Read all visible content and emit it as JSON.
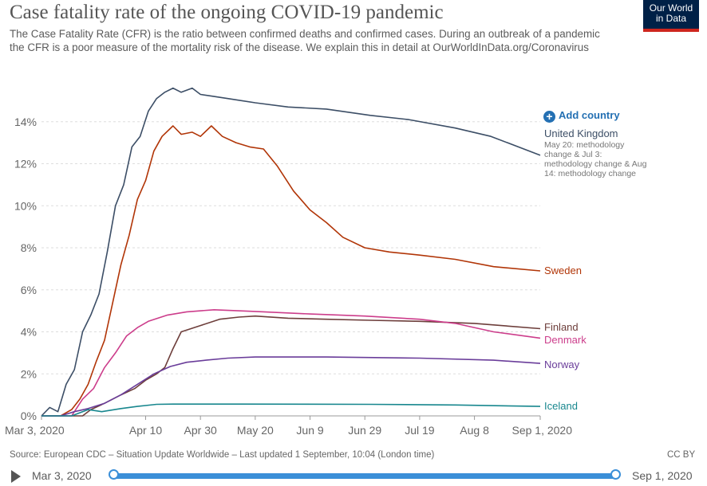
{
  "header": {
    "title": "Case fatality rate of the ongoing COVID-19 pandemic",
    "subtitle": "The Case Fatality Rate (CFR) is the ratio between confirmed deaths and confirmed cases. During an outbreak of a pandemic the CFR is a poor measure of the mortality risk of the disease. We explain this in detail at OurWorldInData.org/Coronavirus",
    "logo_line1": "Our World",
    "logo_line2": "in Data"
  },
  "controls": {
    "add_country": "Add country",
    "add_icon": "plus-circle-icon"
  },
  "footer": {
    "source": "Source: European CDC – Situation Update Worldwide – Last updated 1 September, 10:04 (London time)",
    "license": "CC BY"
  },
  "timeline": {
    "start": "Mar 3, 2020",
    "end": "Sep 1, 2020",
    "color": "#3b8fd8"
  },
  "chart_data": {
    "type": "line",
    "x_range": [
      "2020-03-03",
      "2020-09-01"
    ],
    "x_ticks": [
      {
        "date": "2020-03-03",
        "label": "Mar 3, 2020"
      },
      {
        "date": "2020-04-10",
        "label": "Apr 10"
      },
      {
        "date": "2020-04-30",
        "label": "Apr 30"
      },
      {
        "date": "2020-05-20",
        "label": "May 20"
      },
      {
        "date": "2020-06-09",
        "label": "Jun 9"
      },
      {
        "date": "2020-06-29",
        "label": "Jun 29"
      },
      {
        "date": "2020-07-19",
        "label": "Jul 19"
      },
      {
        "date": "2020-08-08",
        "label": "Aug 8"
      },
      {
        "date": "2020-09-01",
        "label": "Sep 1, 2020"
      }
    ],
    "ylim": [
      0,
      16
    ],
    "y_ticks": [
      {
        "value": 0,
        "label": "0%"
      },
      {
        "value": 2,
        "label": "2%"
      },
      {
        "value": 4,
        "label": "4%"
      },
      {
        "value": 6,
        "label": "6%"
      },
      {
        "value": 8,
        "label": "8%"
      },
      {
        "value": 10,
        "label": "10%"
      },
      {
        "value": 12,
        "label": "12%"
      },
      {
        "value": 14,
        "label": "14%"
      }
    ],
    "grid": "horizontal dashed",
    "legend": "right, end of lines",
    "series": [
      {
        "name": "United Kingdom",
        "note": "May 20: methodology change & Jul 3: methodology change & Aug 14: methodology change",
        "color": "#3c4e66",
        "points": [
          [
            "2020-03-03",
            0
          ],
          [
            "2020-03-06",
            0.4
          ],
          [
            "2020-03-09",
            0.2
          ],
          [
            "2020-03-12",
            1.5
          ],
          [
            "2020-03-15",
            2.2
          ],
          [
            "2020-03-18",
            4.0
          ],
          [
            "2020-03-21",
            4.8
          ],
          [
            "2020-03-24",
            5.8
          ],
          [
            "2020-03-27",
            7.8
          ],
          [
            "2020-03-30",
            10.0
          ],
          [
            "2020-04-02",
            11.0
          ],
          [
            "2020-04-05",
            12.8
          ],
          [
            "2020-04-08",
            13.3
          ],
          [
            "2020-04-11",
            14.5
          ],
          [
            "2020-04-14",
            15.1
          ],
          [
            "2020-04-17",
            15.4
          ],
          [
            "2020-04-20",
            15.6
          ],
          [
            "2020-04-23",
            15.4
          ],
          [
            "2020-04-27",
            15.6
          ],
          [
            "2020-04-30",
            15.3
          ],
          [
            "2020-05-05",
            15.2
          ],
          [
            "2020-05-10",
            15.1
          ],
          [
            "2020-05-20",
            14.9
          ],
          [
            "2020-06-01",
            14.7
          ],
          [
            "2020-06-15",
            14.6
          ],
          [
            "2020-07-01",
            14.3
          ],
          [
            "2020-07-15",
            14.1
          ],
          [
            "2020-08-01",
            13.7
          ],
          [
            "2020-08-14",
            13.3
          ],
          [
            "2020-09-01",
            12.4
          ]
        ]
      },
      {
        "name": "Sweden",
        "color": "#b13507",
        "points": [
          [
            "2020-03-03",
            0
          ],
          [
            "2020-03-10",
            0
          ],
          [
            "2020-03-14",
            0.3
          ],
          [
            "2020-03-17",
            0.8
          ],
          [
            "2020-03-20",
            1.5
          ],
          [
            "2020-03-23",
            2.6
          ],
          [
            "2020-03-26",
            3.6
          ],
          [
            "2020-03-29",
            5.4
          ],
          [
            "2020-04-01",
            7.2
          ],
          [
            "2020-04-04",
            8.6
          ],
          [
            "2020-04-07",
            10.3
          ],
          [
            "2020-04-10",
            11.2
          ],
          [
            "2020-04-13",
            12.6
          ],
          [
            "2020-04-16",
            13.3
          ],
          [
            "2020-04-20",
            13.8
          ],
          [
            "2020-04-23",
            13.4
          ],
          [
            "2020-04-27",
            13.5
          ],
          [
            "2020-04-30",
            13.3
          ],
          [
            "2020-05-04",
            13.8
          ],
          [
            "2020-05-08",
            13.3
          ],
          [
            "2020-05-13",
            13.0
          ],
          [
            "2020-05-18",
            12.8
          ],
          [
            "2020-05-23",
            12.7
          ],
          [
            "2020-05-28",
            11.9
          ],
          [
            "2020-06-03",
            10.7
          ],
          [
            "2020-06-09",
            9.8
          ],
          [
            "2020-06-15",
            9.2
          ],
          [
            "2020-06-21",
            8.5
          ],
          [
            "2020-06-29",
            8.0
          ],
          [
            "2020-07-08",
            7.8
          ],
          [
            "2020-07-19",
            7.65
          ],
          [
            "2020-08-01",
            7.45
          ],
          [
            "2020-08-15",
            7.1
          ],
          [
            "2020-09-01",
            6.9
          ]
        ]
      },
      {
        "name": "Finland",
        "color": "#6d3e3b",
        "points": [
          [
            "2020-03-03",
            0
          ],
          [
            "2020-03-18",
            0
          ],
          [
            "2020-03-21",
            0.3
          ],
          [
            "2020-03-26",
            0.6
          ],
          [
            "2020-04-01",
            1.0
          ],
          [
            "2020-04-06",
            1.3
          ],
          [
            "2020-04-10",
            1.7
          ],
          [
            "2020-04-14",
            2.0
          ],
          [
            "2020-04-17",
            2.3
          ],
          [
            "2020-04-20",
            3.2
          ],
          [
            "2020-04-23",
            4.0
          ],
          [
            "2020-04-30",
            4.3
          ],
          [
            "2020-05-07",
            4.6
          ],
          [
            "2020-05-14",
            4.7
          ],
          [
            "2020-05-20",
            4.75
          ],
          [
            "2020-06-01",
            4.65
          ],
          [
            "2020-06-15",
            4.6
          ],
          [
            "2020-07-01",
            4.55
          ],
          [
            "2020-07-19",
            4.5
          ],
          [
            "2020-08-08",
            4.4
          ],
          [
            "2020-09-01",
            4.15
          ]
        ]
      },
      {
        "name": "Denmark",
        "color": "#cc3d8b",
        "points": [
          [
            "2020-03-03",
            0
          ],
          [
            "2020-03-14",
            0
          ],
          [
            "2020-03-18",
            0.8
          ],
          [
            "2020-03-22",
            1.3
          ],
          [
            "2020-03-26",
            2.3
          ],
          [
            "2020-03-30",
            3.0
          ],
          [
            "2020-04-03",
            3.8
          ],
          [
            "2020-04-07",
            4.2
          ],
          [
            "2020-04-11",
            4.5
          ],
          [
            "2020-04-18",
            4.8
          ],
          [
            "2020-04-25",
            4.95
          ],
          [
            "2020-05-05",
            5.05
          ],
          [
            "2020-05-20",
            4.97
          ],
          [
            "2020-06-09",
            4.85
          ],
          [
            "2020-06-29",
            4.75
          ],
          [
            "2020-07-19",
            4.6
          ],
          [
            "2020-08-01",
            4.4
          ],
          [
            "2020-08-15",
            4.0
          ],
          [
            "2020-09-01",
            3.7
          ]
        ]
      },
      {
        "name": "Norway",
        "color": "#6a3d9a",
        "points": [
          [
            "2020-03-03",
            0
          ],
          [
            "2020-03-10",
            0
          ],
          [
            "2020-03-15",
            0.2
          ],
          [
            "2020-03-20",
            0.35
          ],
          [
            "2020-03-26",
            0.6
          ],
          [
            "2020-04-01",
            1.0
          ],
          [
            "2020-04-07",
            1.5
          ],
          [
            "2020-04-13",
            2.0
          ],
          [
            "2020-04-19",
            2.35
          ],
          [
            "2020-04-25",
            2.55
          ],
          [
            "2020-05-02",
            2.65
          ],
          [
            "2020-05-10",
            2.75
          ],
          [
            "2020-05-20",
            2.8
          ],
          [
            "2020-06-15",
            2.8
          ],
          [
            "2020-07-19",
            2.75
          ],
          [
            "2020-08-15",
            2.65
          ],
          [
            "2020-09-01",
            2.5
          ]
        ]
      },
      {
        "name": "Iceland",
        "color": "#18878e",
        "points": [
          [
            "2020-03-03",
            0
          ],
          [
            "2020-03-14",
            0
          ],
          [
            "2020-03-20",
            0.3
          ],
          [
            "2020-03-25",
            0.2
          ],
          [
            "2020-04-01",
            0.35
          ],
          [
            "2020-04-07",
            0.45
          ],
          [
            "2020-04-14",
            0.55
          ],
          [
            "2020-04-20",
            0.56
          ],
          [
            "2020-05-15",
            0.56
          ],
          [
            "2020-07-01",
            0.55
          ],
          [
            "2020-08-01",
            0.52
          ],
          [
            "2020-09-01",
            0.45
          ]
        ]
      }
    ]
  }
}
